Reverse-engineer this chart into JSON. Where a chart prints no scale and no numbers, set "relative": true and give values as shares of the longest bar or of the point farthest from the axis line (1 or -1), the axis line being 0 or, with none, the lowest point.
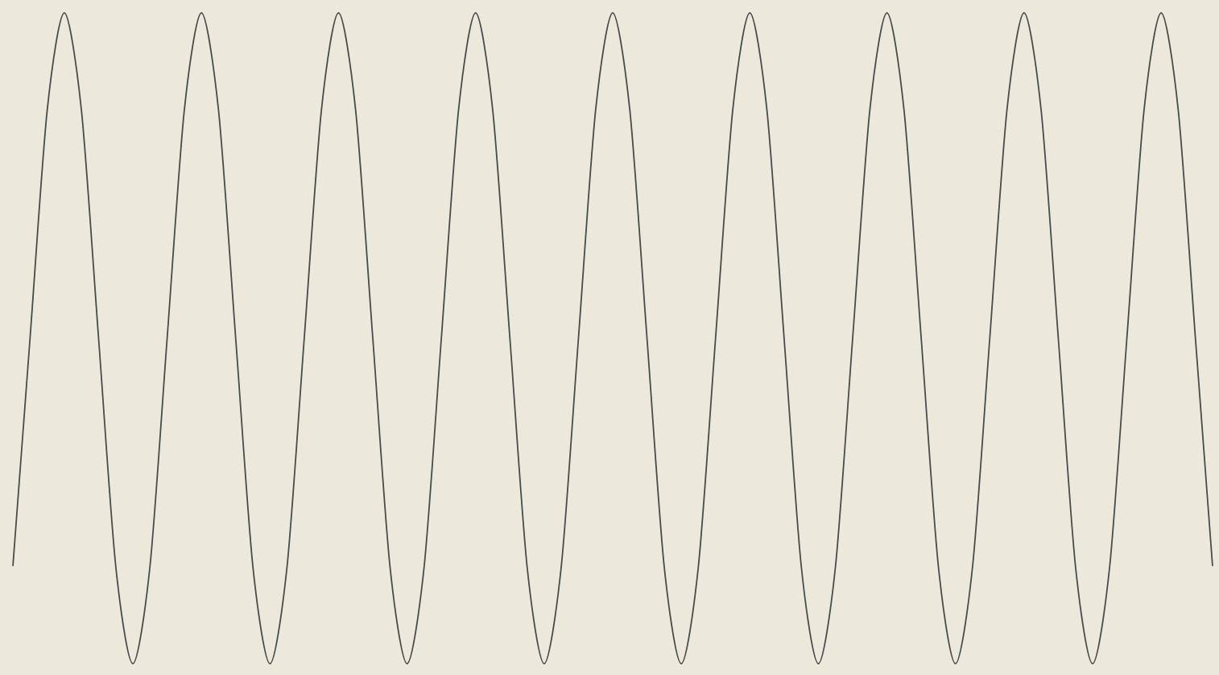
{
  "chart_data": {
    "type": "line",
    "relative": true,
    "color": "#4a4a4a",
    "categories": [
      null,
      null,
      null,
      null,
      null,
      null,
      null,
      null,
      null,
      null,
      null,
      null,
      null,
      null,
      null,
      null,
      null,
      null,
      null,
      null,
      null,
      null,
      null,
      null,
      null,
      null,
      null,
      null,
      null,
      null,
      null,
      null,
      null,
      null,
      null,
      null,
      null,
      null,
      null,
      null,
      null,
      null,
      null,
      null,
      null,
      null,
      null,
      null,
      null,
      null,
      null,
      null,
      null,
      null,
      null,
      null,
      null,
      null,
      null,
      null,
      null,
      null,
      null,
      null,
      null,
      null,
      null,
      null,
      null,
      null,
      null
    ],
    "values": [
      0.15,
      0.5,
      0.85,
      1,
      0.85,
      0.5,
      0.15,
      0,
      0.15,
      0.5,
      0.85,
      1,
      0.85,
      0.5,
      0.15,
      0,
      0.15,
      0.5,
      0.85,
      1,
      0.85,
      0.5,
      0.15,
      0,
      0.15,
      0.5,
      0.85,
      1,
      0.85,
      0.5,
      0.15,
      0,
      0.15,
      0.5,
      0.85,
      1,
      0.85,
      0.5,
      0.15,
      0,
      0.15,
      0.5,
      0.85,
      1,
      0.85,
      0.5,
      0.15,
      0,
      0.15,
      0.5,
      0.85,
      1,
      0.85,
      0.5,
      0.15,
      0,
      0.15,
      0.5,
      0.85,
      1,
      0.85,
      0.5,
      0.15,
      0,
      0.15,
      0.5,
      0.85,
      1,
      0.85,
      0.5,
      0.15
    ]
  }
}
